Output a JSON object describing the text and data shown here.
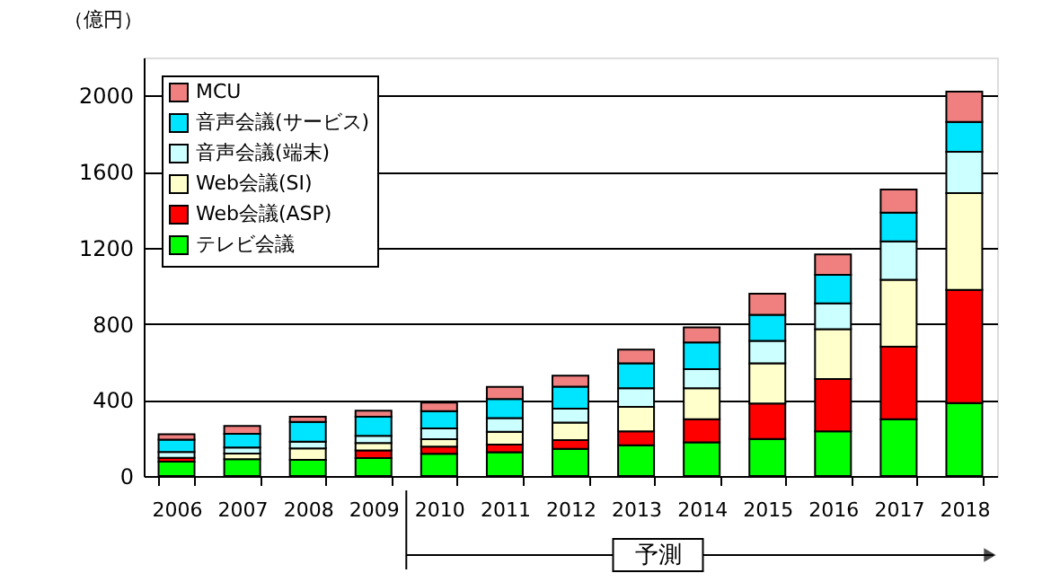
{
  "chart_data": {
    "type": "bar",
    "stacked": true,
    "ylabel": "（億円）",
    "categories": [
      "2006",
      "2007",
      "2008",
      "2009",
      "2010",
      "2011",
      "2012",
      "2013",
      "2014",
      "2015",
      "2016",
      "2017",
      "2018"
    ],
    "series": [
      {
        "name": "テレビ会議",
        "color": "#00ff00",
        "values": [
          76,
          88,
          85,
          95,
          117,
          125,
          143,
          162,
          177,
          195,
          235,
          299,
          384
        ]
      },
      {
        "name": "Web会議(ASP)",
        "color": "#ff0000",
        "values": [
          20,
          null,
          null,
          40,
          38,
          40,
          46,
          73,
          122,
          186,
          275,
          381,
          594
        ]
      },
      {
        "name": "Web会議(SI)",
        "color": "#ffffcc",
        "values": [
          null,
          30,
          60,
          38,
          38,
          67,
          92,
          128,
          162,
          211,
          262,
          351,
          509
        ]
      },
      {
        "name": "音声会議(端末)",
        "color": "#ccffff",
        "values": [
          30,
          32,
          35,
          38,
          57,
          72,
          73,
          98,
          101,
          119,
          136,
          202,
          217
        ]
      },
      {
        "name": "音声会議(サービス)",
        "color": "#00e5ff",
        "values": [
          65,
          72,
          104,
          101,
          91,
          101,
          116,
          131,
          140,
          137,
          150,
          151,
          157
        ]
      },
      {
        "name": "MCU",
        "color": "#f08080",
        "values": [
          28,
          41,
          28,
          32,
          45,
          64,
          58,
          73,
          79,
          110,
          107,
          122,
          160
        ]
      }
    ],
    "ylim": [
      0,
      2200
    ],
    "yticks": [
      0,
      400,
      800,
      1200,
      1600,
      2000
    ],
    "grid": "y",
    "legend": "top left",
    "annotations": [
      "予測"
    ]
  }
}
